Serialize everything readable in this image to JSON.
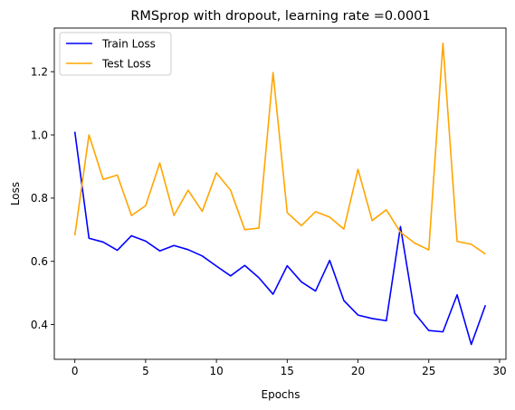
{
  "chart_data": {
    "type": "line",
    "title": "RMSprop with dropout, learning rate =0.0001",
    "xlabel": "Epochs",
    "ylabel": "Loss",
    "xlim": [
      -1.45,
      30.45
    ],
    "ylim": [
      0.29,
      1.338
    ],
    "xticks": [
      0,
      5,
      10,
      15,
      20,
      25,
      30
    ],
    "xtick_labels": [
      "0",
      "5",
      "10",
      "15",
      "20",
      "25",
      "30"
    ],
    "yticks": [
      0.4,
      0.6,
      0.8,
      1.0,
      1.2
    ],
    "ytick_labels": [
      "0.4",
      "0.6",
      "0.8",
      "1.0",
      "1.2"
    ],
    "grid": false,
    "legend_position": "upper-left",
    "x": [
      0,
      1,
      2,
      3,
      4,
      5,
      6,
      7,
      8,
      9,
      10,
      11,
      12,
      13,
      14,
      15,
      16,
      17,
      18,
      19,
      20,
      21,
      22,
      23,
      24,
      25,
      26,
      27,
      28,
      29
    ],
    "series": [
      {
        "name": "Train Loss",
        "color": "#0000ff",
        "values": [
          1.01,
          0.673,
          0.661,
          0.635,
          0.681,
          0.664,
          0.633,
          0.65,
          0.637,
          0.617,
          0.585,
          0.554,
          0.587,
          0.548,
          0.496,
          0.586,
          0.535,
          0.506,
          0.603,
          0.476,
          0.43,
          0.419,
          0.412,
          0.71,
          0.436,
          0.381,
          0.377,
          0.494,
          0.337,
          0.461
        ]
      },
      {
        "name": "Test Loss",
        "color": "#ffa500",
        "values": [
          0.682,
          1.0,
          0.859,
          0.873,
          0.745,
          0.776,
          0.911,
          0.745,
          0.825,
          0.758,
          0.88,
          0.825,
          0.7,
          0.705,
          1.197,
          0.754,
          0.713,
          0.757,
          0.74,
          0.702,
          0.891,
          0.729,
          0.763,
          0.692,
          0.658,
          0.636,
          1.29,
          0.663,
          0.654,
          0.623
        ]
      }
    ]
  }
}
